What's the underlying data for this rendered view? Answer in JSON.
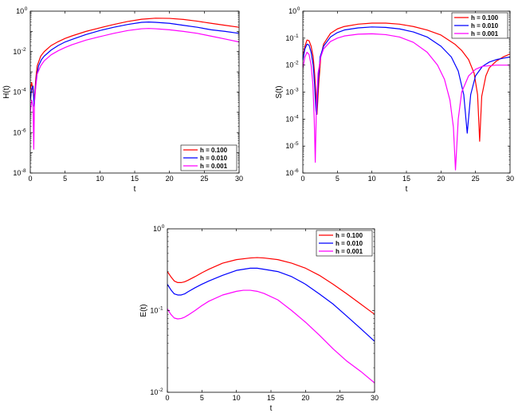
{
  "chart_data": [
    {
      "type": "line",
      "xlabel": "t",
      "ylabel": "H(t)",
      "xlim": [
        0,
        30
      ],
      "ylim_log10": [
        -8,
        0
      ],
      "y_scale": "log",
      "x_ticks": [
        0,
        5,
        10,
        15,
        20,
        25,
        30
      ],
      "y_tick_exponents": [
        -8,
        -6,
        -4,
        -2,
        0
      ],
      "legend_position": "bottom-right",
      "series": [
        {
          "name": "h = 0.100",
          "color": "#ff0000",
          "x": [
            0,
            0.2,
            0.4,
            0.6,
            0.8,
            1.0,
            1.5,
            2,
            3,
            4,
            5,
            6,
            8,
            10,
            12,
            14,
            16,
            18,
            20,
            22,
            24,
            26,
            28,
            30
          ],
          "y": [
            0.00013,
            0.0003,
            0.0001,
            5e-05,
            0.0005,
            0.002,
            0.006,
            0.01,
            0.02,
            0.031,
            0.045,
            0.06,
            0.1,
            0.15,
            0.22,
            0.31,
            0.4,
            0.45,
            0.44,
            0.39,
            0.32,
            0.25,
            0.2,
            0.16
          ]
        },
        {
          "name": "h = 0.010",
          "color": "#0000ff",
          "x": [
            0,
            0.2,
            0.4,
            0.55,
            0.7,
            0.9,
            1.2,
            1.6,
            2,
            3,
            4,
            5,
            6,
            8,
            10,
            12,
            14,
            16,
            17,
            18,
            20,
            22,
            24,
            26,
            28,
            30
          ],
          "y": [
            4e-05,
            0.00015,
            0.0002,
            2e-05,
            0.0001,
            0.0006,
            0.002,
            0.004,
            0.006,
            0.012,
            0.02,
            0.03,
            0.04,
            0.07,
            0.11,
            0.16,
            0.22,
            0.28,
            0.29,
            0.28,
            0.25,
            0.2,
            0.16,
            0.12,
            0.1,
            0.08
          ]
        },
        {
          "name": "h = 0.001",
          "color": "#ff00ff",
          "x": [
            0,
            0.2,
            0.4,
            0.5,
            0.6,
            0.8,
            1.0,
            1.5,
            2,
            3,
            4,
            5,
            6,
            8,
            10,
            12,
            14,
            16,
            17,
            18,
            20,
            22,
            24,
            26,
            28,
            30
          ],
          "y": [
            1e-05,
            4e-05,
            2e-05,
            1.5e-07,
            3e-05,
            0.0002,
            0.0008,
            0.002,
            0.0035,
            0.007,
            0.011,
            0.016,
            0.022,
            0.037,
            0.055,
            0.08,
            0.11,
            0.135,
            0.14,
            0.135,
            0.12,
            0.1,
            0.08,
            0.058,
            0.042,
            0.03
          ]
        }
      ]
    },
    {
      "type": "line",
      "xlabel": "t",
      "ylabel": "S(t)",
      "xlim": [
        0,
        30
      ],
      "ylim_log10": [
        -6,
        0
      ],
      "y_scale": "log",
      "x_ticks": [
        0,
        5,
        10,
        15,
        20,
        25,
        30
      ],
      "y_tick_exponents": [
        -6,
        -5,
        -4,
        -3,
        -2,
        -1,
        0
      ],
      "legend_position": "top-right",
      "series": [
        {
          "name": "h = 0.100",
          "color": "#ff0000",
          "x": [
            0,
            0.3,
            0.6,
            0.9,
            1.2,
            1.5,
            1.7,
            1.9,
            2.05,
            2.3,
            2.6,
            3,
            4,
            5,
            6,
            8,
            10,
            12,
            14,
            16,
            18,
            20,
            22,
            23,
            24,
            24.8,
            25.3,
            25.6,
            25.9,
            26.5,
            27,
            28,
            29,
            30
          ],
          "y": [
            0.02,
            0.05,
            0.085,
            0.08,
            0.05,
            0.02,
            0.005,
            0.0008,
            0.00015,
            0.002,
            0.02,
            0.06,
            0.15,
            0.22,
            0.27,
            0.33,
            0.36,
            0.36,
            0.33,
            0.27,
            0.2,
            0.13,
            0.06,
            0.035,
            0.016,
            0.005,
            0.0008,
            1.5e-05,
            0.0007,
            0.004,
            0.008,
            0.014,
            0.02,
            0.026
          ]
        },
        {
          "name": "h = 0.010",
          "color": "#0000ff",
          "x": [
            0,
            0.3,
            0.6,
            0.9,
            1.2,
            1.5,
            1.7,
            1.9,
            2.0,
            2.2,
            2.5,
            3,
            4,
            5,
            6,
            8,
            10,
            12,
            14,
            16,
            18,
            20,
            21.5,
            22.5,
            23.3,
            23.8,
            24.3,
            25,
            26,
            27,
            28,
            29,
            30
          ],
          "y": [
            0.015,
            0.04,
            0.06,
            0.055,
            0.03,
            0.01,
            0.002,
            0.0002,
            0.00015,
            0.002,
            0.02,
            0.05,
            0.11,
            0.16,
            0.2,
            0.24,
            0.26,
            0.25,
            0.22,
            0.17,
            0.11,
            0.05,
            0.02,
            0.006,
            0.0008,
            3e-05,
            0.0008,
            0.004,
            0.009,
            0.013,
            0.016,
            0.018,
            0.02
          ]
        },
        {
          "name": "h = 0.001",
          "color": "#ff00ff",
          "x": [
            0,
            0.3,
            0.6,
            0.9,
            1.2,
            1.45,
            1.65,
            1.8,
            1.95,
            2.2,
            2.6,
            3,
            4,
            5,
            6,
            8,
            10,
            12,
            14,
            16,
            18,
            19.5,
            20.5,
            21.3,
            21.8,
            22.1,
            22.5,
            23,
            24,
            25,
            26,
            28,
            30
          ],
          "y": [
            0.008,
            0.02,
            0.03,
            0.025,
            0.01,
            0.002,
            0.0001,
            2.5e-06,
            0.0002,
            0.005,
            0.02,
            0.04,
            0.075,
            0.1,
            0.12,
            0.14,
            0.145,
            0.135,
            0.11,
            0.07,
            0.03,
            0.01,
            0.003,
            0.0005,
            5e-05,
            1.3e-06,
            0.0001,
            0.001,
            0.004,
            0.007,
            0.009,
            0.01,
            0.01
          ]
        }
      ]
    },
    {
      "type": "line",
      "xlabel": "t",
      "ylabel": "E(t)",
      "xlim": [
        0,
        30
      ],
      "ylim_log10": [
        -2,
        0
      ],
      "y_scale": "log",
      "x_ticks": [
        0,
        5,
        10,
        15,
        20,
        25,
        30
      ],
      "y_tick_exponents": [
        -2,
        -1,
        0
      ],
      "legend_position": "top-right",
      "series": [
        {
          "name": "h = 0.100",
          "color": "#ff0000",
          "x": [
            0,
            0.5,
            1,
            1.5,
            2,
            2.5,
            3,
            4,
            5,
            6,
            8,
            10,
            12,
            13,
            14,
            16,
            18,
            20,
            22,
            24,
            26,
            28,
            30
          ],
          "y": [
            0.3,
            0.26,
            0.23,
            0.22,
            0.22,
            0.225,
            0.235,
            0.26,
            0.29,
            0.32,
            0.38,
            0.42,
            0.44,
            0.445,
            0.44,
            0.42,
            0.38,
            0.33,
            0.27,
            0.21,
            0.16,
            0.12,
            0.09
          ]
        },
        {
          "name": "h = 0.010",
          "color": "#0000ff",
          "x": [
            0,
            0.5,
            1,
            1.5,
            2,
            2.5,
            3,
            4,
            5,
            6,
            8,
            10,
            12,
            13,
            14,
            16,
            18,
            20,
            22,
            24,
            26,
            28,
            30
          ],
          "y": [
            0.21,
            0.18,
            0.16,
            0.155,
            0.155,
            0.16,
            0.17,
            0.19,
            0.21,
            0.23,
            0.27,
            0.31,
            0.33,
            0.33,
            0.32,
            0.3,
            0.26,
            0.21,
            0.16,
            0.12,
            0.085,
            0.06,
            0.042
          ]
        },
        {
          "name": "h = 0.001",
          "color": "#ff00ff",
          "x": [
            0,
            0.5,
            1,
            1.5,
            2,
            2.5,
            3,
            4,
            5,
            6,
            8,
            10,
            11,
            12,
            13,
            14,
            16,
            18,
            20,
            22,
            24,
            26,
            28,
            30
          ],
          "y": [
            0.105,
            0.09,
            0.081,
            0.079,
            0.08,
            0.083,
            0.088,
            0.1,
            0.115,
            0.13,
            0.155,
            0.172,
            0.177,
            0.177,
            0.172,
            0.162,
            0.135,
            0.1,
            0.072,
            0.05,
            0.034,
            0.024,
            0.018,
            0.013
          ]
        }
      ]
    }
  ]
}
